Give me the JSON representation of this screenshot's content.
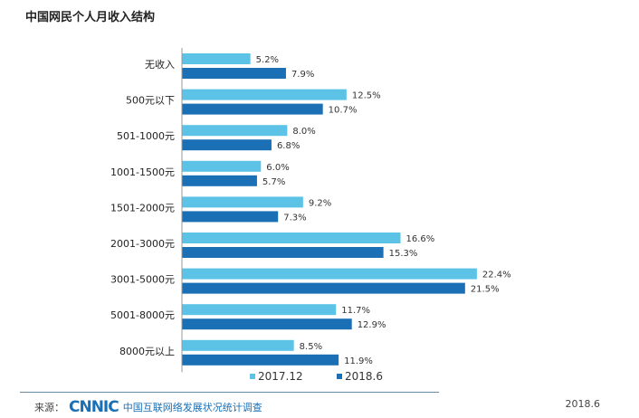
{
  "chart_data": {
    "type": "bar",
    "orientation": "horizontal",
    "title": "中国网民个人月收入结构",
    "categories": [
      "无收入",
      "500元以下",
      "501-1000元",
      "1001-1500元",
      "1501-2000元",
      "2001-3000元",
      "3001-5000元",
      "5001-8000元",
      "8000元以上"
    ],
    "series": [
      {
        "name": "2017.12",
        "color": "#5cc3e6",
        "values": [
          5.2,
          12.5,
          8.0,
          6.0,
          9.2,
          16.6,
          22.4,
          11.7,
          8.5
        ]
      },
      {
        "name": "2018.6",
        "color": "#1a6fb5",
        "values": [
          7.9,
          10.7,
          6.8,
          5.7,
          7.3,
          15.3,
          21.5,
          12.9,
          11.9
        ]
      }
    ],
    "value_suffix": "%",
    "legend_position": "bottom"
  },
  "footer": {
    "source_label": "来源：",
    "logo": "CNNIC",
    "survey": "中国互联网络发展状况统计调查",
    "date": "2018.6"
  }
}
